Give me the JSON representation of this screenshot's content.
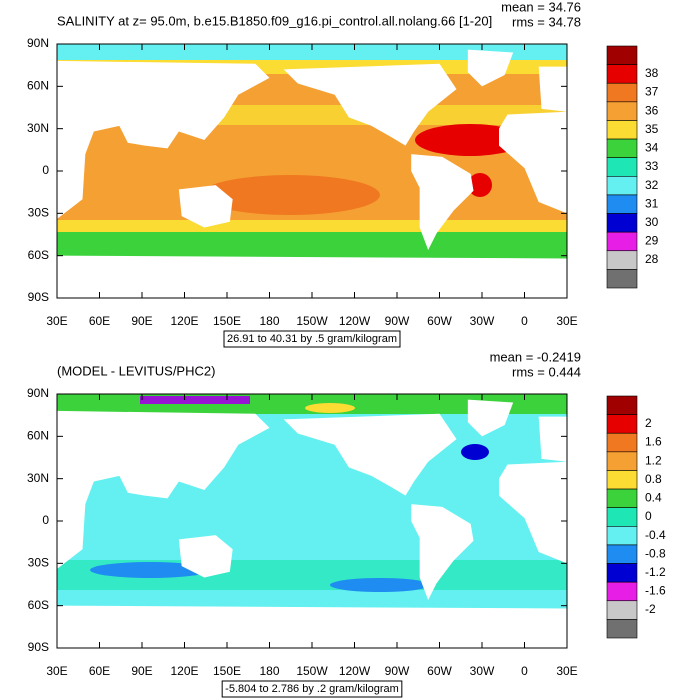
{
  "panels": [
    {
      "title": "SALINITY at z=  95.0m, b.e15.B1850.f09_g16.pi_control.all.nolang.66 [1-20]",
      "mean": "mean = 34.76",
      "rms": "rms = 34.78",
      "lat_labels": [
        "90N",
        "60N",
        "30N",
        "0",
        "30S",
        "60S",
        "90S"
      ],
      "lon_labels": [
        "30E",
        "60E",
        "90E",
        "120E",
        "150E",
        "180",
        "150W",
        "120W",
        "90W",
        "60W",
        "30W",
        "0",
        "30E"
      ],
      "range": "26.91 to 40.31 by .5 gram/kilogram",
      "colorbar": {
        "labels": [
          "38",
          "37",
          "36",
          "35",
          "34",
          "33",
          "32",
          "31",
          "30",
          "29",
          "28"
        ],
        "colors": [
          "#a00000",
          "#e60000",
          "#f07820",
          "#f5a032",
          "#fadc32",
          "#3cd23c",
          "#1ee6b4",
          "#64f0f0",
          "#1e8cf0",
          "#0000d2",
          "#e61ee6",
          "#c8c8c8",
          "#707070"
        ]
      }
    },
    {
      "title": "(MODEL - LEVITUS/PHC2)",
      "mean": "mean = -0.2419",
      "rms": "rms = 0.444",
      "lat_labels": [
        "90N",
        "60N",
        "30N",
        "0",
        "30S",
        "60S",
        "90S"
      ],
      "lon_labels": [
        "30E",
        "60E",
        "90E",
        "120E",
        "150E",
        "180",
        "150W",
        "120W",
        "90W",
        "60W",
        "30W",
        "0",
        "30E"
      ],
      "range": "-5.804 to 2.786 by .2 gram/kilogram",
      "colorbar": {
        "labels": [
          "2",
          "1.6",
          "1.2",
          "0.8",
          "0.4",
          "0",
          "-0.4",
          "-0.8",
          "-1.2",
          "-1.6",
          "-2"
        ],
        "colors": [
          "#a00000",
          "#e60000",
          "#f07820",
          "#f5a032",
          "#fadc32",
          "#3cd23c",
          "#1ee6b4",
          "#64f0f0",
          "#1e8cf0",
          "#0000d2",
          "#e61ee6",
          "#c8c8c8",
          "#707070"
        ]
      }
    }
  ]
}
